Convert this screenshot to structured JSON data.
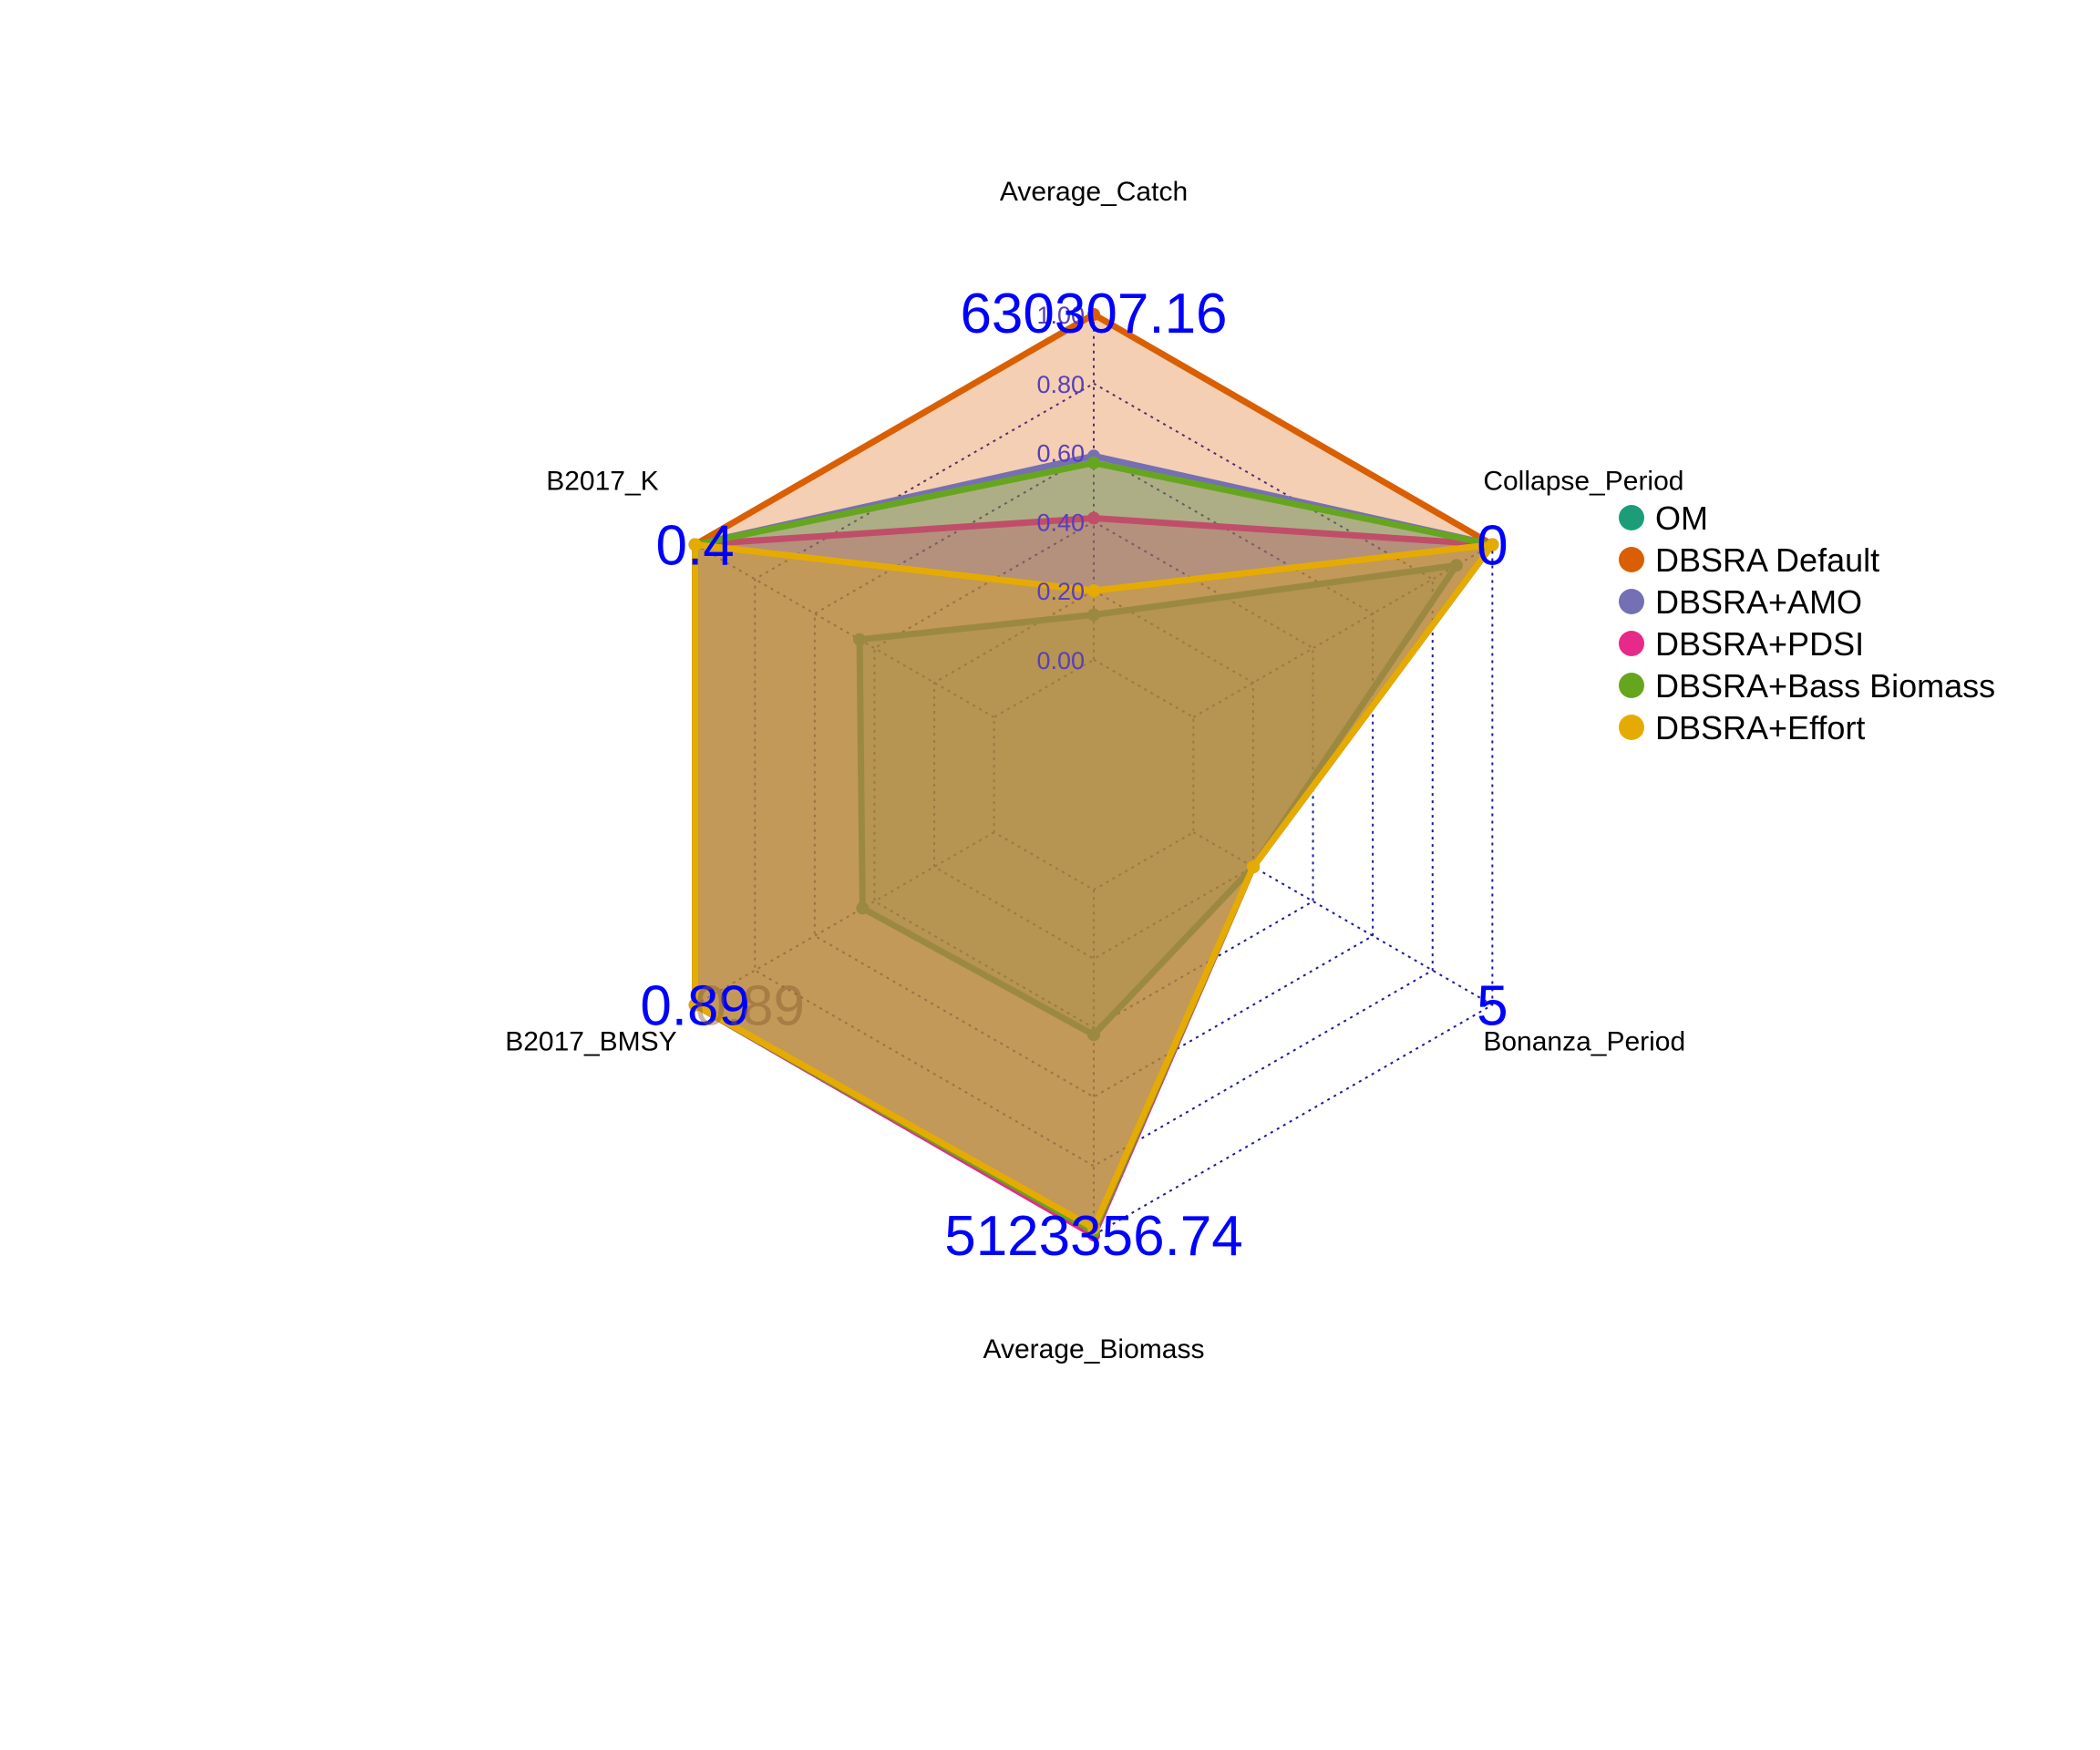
{
  "chart_data": {
    "type": "radar",
    "title": "",
    "axes": [
      {
        "name": "Average_Catch",
        "max_label": "630307.16",
        "min_label": ""
      },
      {
        "name": "Collapse_Period",
        "max_label": "0",
        "min_label": ""
      },
      {
        "name": "Bonanza_Period",
        "max_label": "5",
        "min_label": ""
      },
      {
        "name": "Average_Biomass",
        "max_label": "5123356.74",
        "min_label": ""
      },
      {
        "name": "B2017_BMSY",
        "max_label": "0.89",
        "min_label": "0.89"
      },
      {
        "name": "B2017_K",
        "max_label": "0.4",
        "min_label": ""
      }
    ],
    "radial_ticks": [
      "0.00",
      "0.20",
      "0.40",
      "0.60",
      "0.80",
      "1.00"
    ],
    "radial_range": [
      0,
      1
    ],
    "grid": true,
    "legend_position": "right",
    "series": [
      {
        "name": "OM",
        "color": "#1b9e77",
        "values": [
          0.13,
          0.88,
          0.2,
          0.42,
          0.44,
          0.45
        ]
      },
      {
        "name": "DBSRA Default",
        "color": "#d95f02",
        "values": [
          1.0,
          1.0,
          0.2,
          1.0,
          1.0,
          1.0
        ]
      },
      {
        "name": "DBSRA+AMO",
        "color": "#7570b3",
        "values": [
          0.59,
          1.0,
          0.2,
          1.0,
          1.0,
          1.0
        ]
      },
      {
        "name": "DBSRA+PDSI",
        "color": "#e7298a",
        "values": [
          0.41,
          1.0,
          0.2,
          1.0,
          1.0,
          1.0
        ]
      },
      {
        "name": "DBSRA+Bass Biomass",
        "color": "#66a61e",
        "values": [
          0.57,
          1.0,
          0.2,
          0.99,
          1.0,
          1.0
        ]
      },
      {
        "name": "DBSRA+Effort",
        "color": "#e6ab02",
        "values": [
          0.2,
          1.0,
          0.2,
          0.98,
          1.0,
          1.0
        ]
      }
    ]
  }
}
